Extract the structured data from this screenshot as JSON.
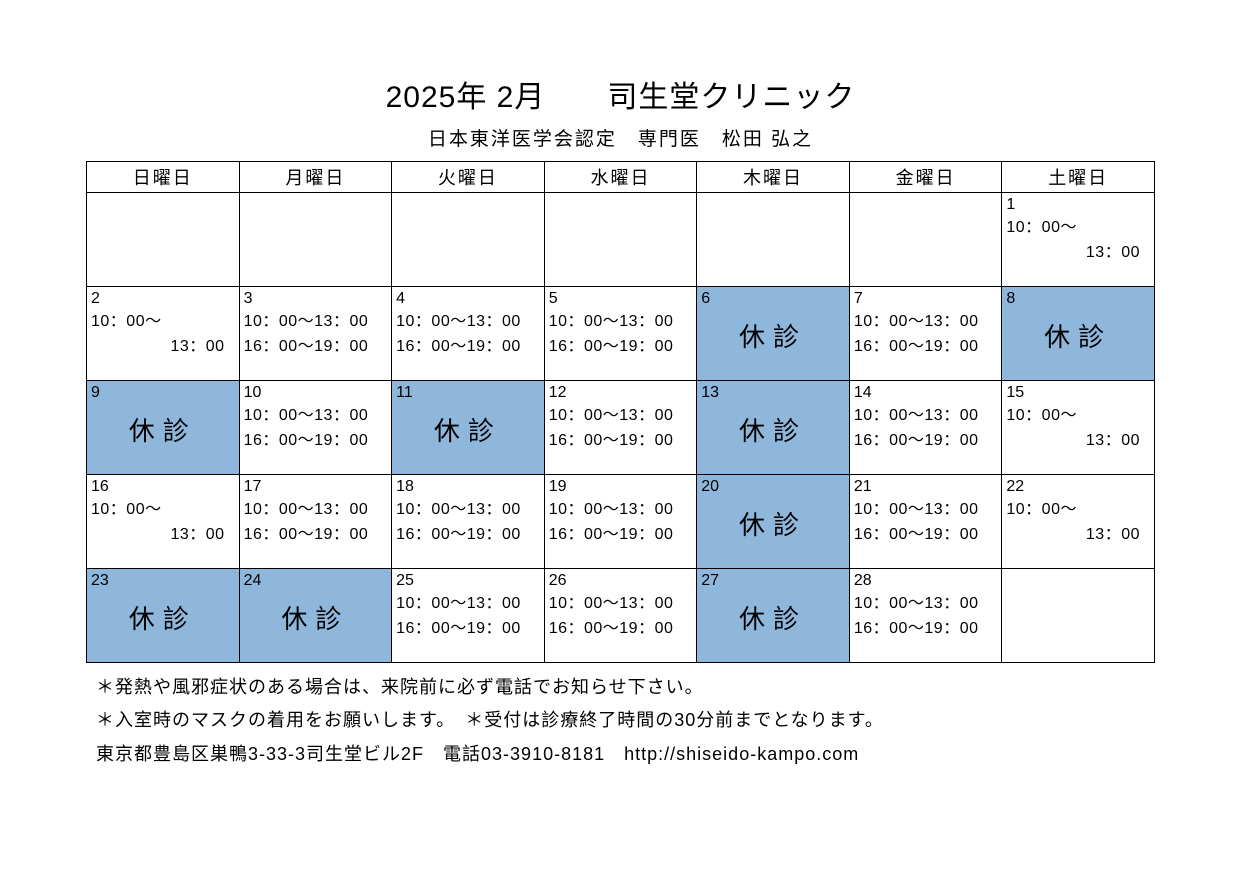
{
  "header": {
    "title": "2025年 2月　　司生堂クリニック",
    "subtitle": "日本東洋医学会認定　専門医　松田 弘之"
  },
  "styling": {
    "page_bg": "#ffffff",
    "text_color": "#000000",
    "closed_bg": "#8fb7dc",
    "border_color": "#000000",
    "title_fontsize": 30,
    "subtitle_fontsize": 19,
    "cell_fontsize": 16,
    "closed_fontsize": 26,
    "notes_fontsize": 18,
    "closed_label": "休診"
  },
  "calendar": {
    "columns": [
      "日曜日",
      "月曜日",
      "火曜日",
      "水曜日",
      "木曜日",
      "金曜日",
      "土曜日"
    ],
    "weeks": [
      [
        {
          "day": "",
          "lines": [],
          "closed": false
        },
        {
          "day": "",
          "lines": [],
          "closed": false
        },
        {
          "day": "",
          "lines": [],
          "closed": false
        },
        {
          "day": "",
          "lines": [],
          "closed": false
        },
        {
          "day": "",
          "lines": [],
          "closed": false
        },
        {
          "day": "",
          "lines": [],
          "closed": false
        },
        {
          "day": "1",
          "lines": [
            "10：00～",
            "　　13：00"
          ],
          "closed": false,
          "half": true
        }
      ],
      [
        {
          "day": "2",
          "lines": [
            "10：00～",
            "　　13：00"
          ],
          "closed": false,
          "half": true
        },
        {
          "day": "3",
          "lines": [
            "10：00～13：00",
            "16：00～19：00"
          ],
          "closed": false
        },
        {
          "day": "4",
          "lines": [
            "10：00～13：00",
            "16：00～19：00"
          ],
          "closed": false
        },
        {
          "day": "5",
          "lines": [
            "10：00～13：00",
            "16：00～19：00"
          ],
          "closed": false
        },
        {
          "day": "6",
          "lines": [],
          "closed": true
        },
        {
          "day": "7",
          "lines": [
            "10：00～13：00",
            "16：00～19：00"
          ],
          "closed": false
        },
        {
          "day": "8",
          "lines": [],
          "closed": true
        }
      ],
      [
        {
          "day": "9",
          "lines": [],
          "closed": true
        },
        {
          "day": "10",
          "lines": [
            "10：00～13：00",
            "16：00～19：00"
          ],
          "closed": false
        },
        {
          "day": "11",
          "lines": [],
          "closed": true
        },
        {
          "day": "12",
          "lines": [
            "10：00～13：00",
            "16：00～19：00"
          ],
          "closed": false
        },
        {
          "day": "13",
          "lines": [],
          "closed": true
        },
        {
          "day": "14",
          "lines": [
            "10：00～13：00",
            "16：00～19：00"
          ],
          "closed": false
        },
        {
          "day": "15",
          "lines": [
            "10：00～",
            "　　13：00"
          ],
          "closed": false,
          "half": true
        }
      ],
      [
        {
          "day": "16",
          "lines": [
            "10：00～",
            "　　13：00"
          ],
          "closed": false,
          "half": true
        },
        {
          "day": "17",
          "lines": [
            "10：00～13：00",
            "16：00～19：00"
          ],
          "closed": false
        },
        {
          "day": "18",
          "lines": [
            "10：00～13：00",
            "16：00～19：00"
          ],
          "closed": false
        },
        {
          "day": "19",
          "lines": [
            "10：00～13：00",
            "16：00～19：00"
          ],
          "closed": false
        },
        {
          "day": "20",
          "lines": [],
          "closed": true
        },
        {
          "day": "21",
          "lines": [
            "10：00～13：00",
            "16：00～19：00"
          ],
          "closed": false
        },
        {
          "day": "22",
          "lines": [
            "10：00～",
            "　　13：00"
          ],
          "closed": false,
          "half": true
        }
      ],
      [
        {
          "day": "23",
          "lines": [],
          "closed": true
        },
        {
          "day": "24",
          "lines": [],
          "closed": true
        },
        {
          "day": "25",
          "lines": [
            "10：00～13：00",
            "16：00～19：00"
          ],
          "closed": false
        },
        {
          "day": "26",
          "lines": [
            "10：00～13：00",
            "16：00～19：00"
          ],
          "closed": false
        },
        {
          "day": "27",
          "lines": [],
          "closed": true
        },
        {
          "day": "28",
          "lines": [
            "10：00～13：00",
            "16：00～19：00"
          ],
          "closed": false
        },
        {
          "day": "",
          "lines": [],
          "closed": false
        }
      ]
    ]
  },
  "notes": {
    "line1": "＊発熱や風邪症状のある場合は、来院前に必ず電話でお知らせ下さい。",
    "line2": "＊入室時のマスクの着用をお願いします。　＊受付は診療終了時間の30分前までとなります。",
    "line3": "東京都豊島区巣鴨3-33-3司生堂ビル2F　電話03-3910-8181　http://shiseido-kampo.com"
  }
}
